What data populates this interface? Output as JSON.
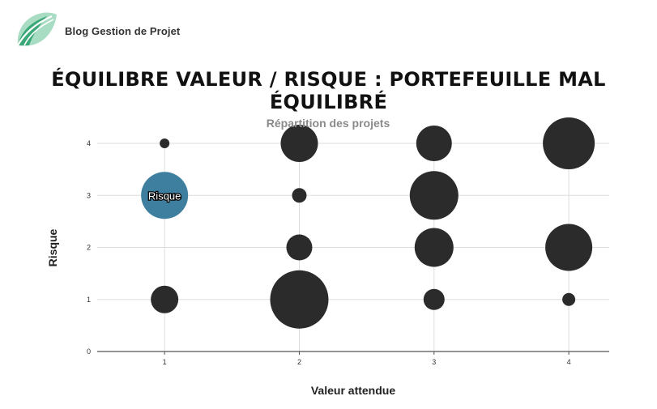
{
  "brand": {
    "name": "Blog Gestion de Projet",
    "logo_icon": "leaf-logo-icon",
    "colors": {
      "light": "#a8dcc3",
      "dark": "#3aa878"
    }
  },
  "headline": "ÉQUILIBRE VALEUR / RISQUE : PORTEFEUILLE MAL ÉQUILIBRÉ",
  "chart_data": {
    "type": "scatter",
    "title": "Répartition des projets",
    "xlabel": "Valeur attendue",
    "ylabel": "Risque",
    "xlim": [
      0.5,
      4.3
    ],
    "ylim": [
      0,
      4
    ],
    "xticks": [
      1,
      2,
      3,
      4
    ],
    "yticks": [
      0,
      1,
      2,
      3,
      4
    ],
    "grid": true,
    "point_color": "#2b2b2b",
    "highlight_color": "#3e7f9f",
    "points": [
      {
        "x": 1,
        "y": 4,
        "size": 6
      },
      {
        "x": 1,
        "y": 3,
        "size": 29,
        "label": "Risque",
        "highlight": true
      },
      {
        "x": 1,
        "y": 1,
        "size": 17
      },
      {
        "x": 2,
        "y": 4,
        "size": 23
      },
      {
        "x": 2,
        "y": 3,
        "size": 9
      },
      {
        "x": 2,
        "y": 2,
        "size": 16
      },
      {
        "x": 2,
        "y": 1,
        "size": 36
      },
      {
        "x": 3,
        "y": 4,
        "size": 22
      },
      {
        "x": 3,
        "y": 3,
        "size": 30
      },
      {
        "x": 3,
        "y": 2,
        "size": 24
      },
      {
        "x": 3,
        "y": 1,
        "size": 13
      },
      {
        "x": 4,
        "y": 4,
        "size": 32
      },
      {
        "x": 4,
        "y": 2,
        "size": 29
      },
      {
        "x": 4,
        "y": 1,
        "size": 8
      }
    ]
  }
}
